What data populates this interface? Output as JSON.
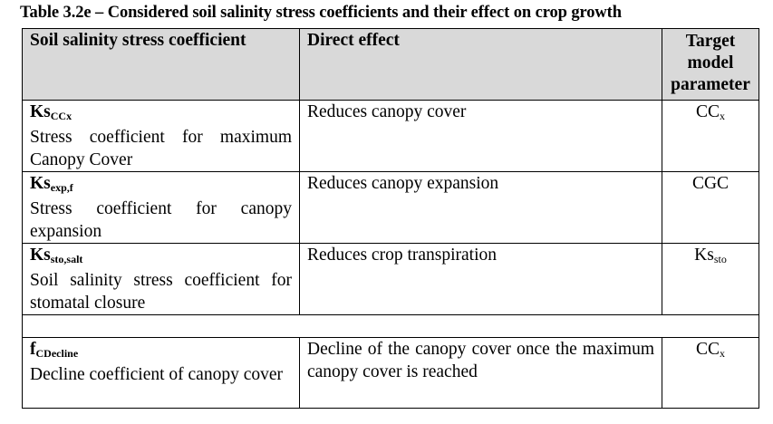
{
  "caption": "Table 3.2e – Considered soil salinity stress coefficients and their effect on crop growth",
  "headers": {
    "coefficient": "Soil salinity stress coefficient",
    "effect": "Direct effect",
    "target": "Target model parameter"
  },
  "rows": [
    {
      "symbol": "Ks",
      "symbol_sub": "CCx",
      "description": "Stress coefficient for maximum Canopy Cover",
      "effect": "Reduces canopy cover",
      "param": "CC",
      "param_sub": "x"
    },
    {
      "symbol": "Ks",
      "symbol_sub": "exp,f",
      "description": "Stress coefficient for canopy expansion",
      "effect": "Reduces canopy expansion",
      "param": "CGC",
      "param_sub": ""
    },
    {
      "symbol": "Ks",
      "symbol_sub": "sto,salt",
      "description": "Soil salinity stress coefficient for stomatal closure",
      "effect": "Reduces crop transpiration",
      "param": "Ks",
      "param_sub": "sto"
    },
    {
      "symbol": "f",
      "symbol_sub": "CDecline",
      "description": "Decline coefficient of canopy cover",
      "effect": "Decline of the canopy cover once the maximum canopy cover is reached",
      "param": "CC",
      "param_sub": "x"
    }
  ]
}
